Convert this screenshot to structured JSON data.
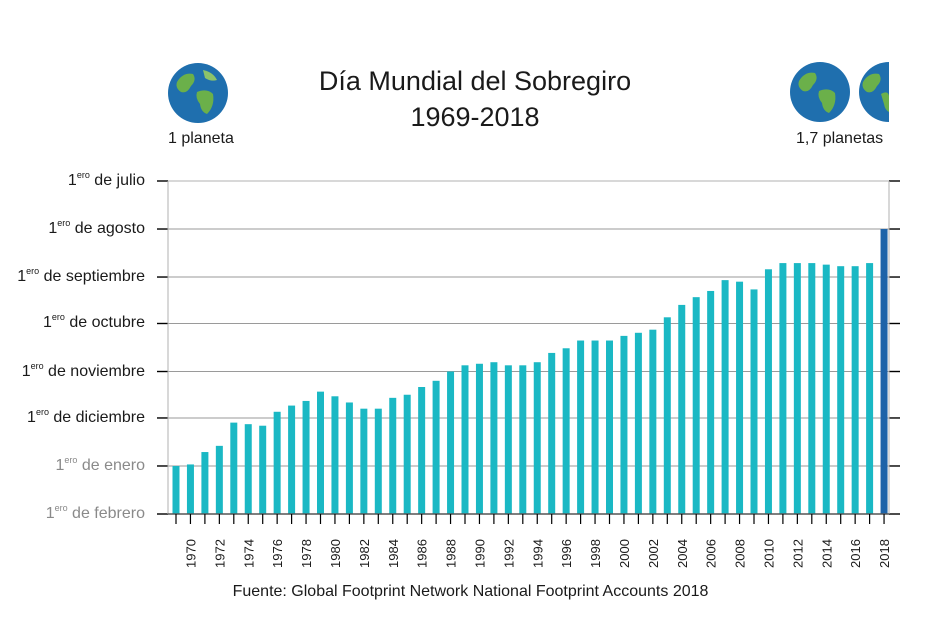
{
  "header": {
    "title_line1": "Día Mundial del Sobregiro",
    "title_line2": "1969-2018",
    "left_globe_label": "1 planeta",
    "right_globe_label": "1,7 planetas"
  },
  "source": "Fuente: Global Footprint Network National Footprint Accounts 2018",
  "colors": {
    "bar": "#1ab8c4",
    "bar_last": "#1e63a8",
    "grid": "#9a9a9a",
    "axis": "#000000"
  },
  "icons": {
    "left": "globe-icon",
    "right": "globe-icon"
  },
  "chart_data": {
    "type": "bar",
    "title": "Día Mundial del Sobregiro 1969-2018",
    "ylabel": "",
    "xlabel": "",
    "y_ticks": [
      {
        "sup": "ero",
        "text": " de julio",
        "value": 182,
        "dim": false
      },
      {
        "sup": "ero",
        "text": " de agosto",
        "value": 213,
        "dim": false
      },
      {
        "sup": "ero",
        "text": " de septiembre",
        "value": 244,
        "dim": false
      },
      {
        "sup": "ero",
        "text": " de octubre",
        "value": 274,
        "dim": false
      },
      {
        "sup": "ero",
        "text": " de noviembre",
        "value": 305,
        "dim": false
      },
      {
        "sup": "ero",
        "text": " de diciembre",
        "value": 335,
        "dim": false
      },
      {
        "sup": "ero",
        "text": " de enero",
        "value": 366,
        "dim": true
      },
      {
        "sup": "ero",
        "text": " de febrero",
        "value": 397,
        "dim": true
      }
    ],
    "ylim_day_of_year": [
      182,
      397
    ],
    "y_axis_reversed": true,
    "grid": true,
    "x_tick_labels": [
      "1970",
      "1972",
      "1974",
      "1976",
      "1978",
      "1980",
      "1982",
      "1984",
      "1986",
      "1988",
      "1990",
      "1992",
      "1994",
      "1996",
      "1998",
      "2000",
      "2002",
      "2004",
      "2006",
      "2008",
      "2010",
      "2012",
      "2014",
      "2016",
      "2018"
    ],
    "categories": [
      1969,
      1970,
      1971,
      1972,
      1973,
      1974,
      1975,
      1976,
      1977,
      1978,
      1979,
      1980,
      1981,
      1982,
      1983,
      1984,
      1985,
      1986,
      1987,
      1988,
      1989,
      1990,
      1991,
      1992,
      1993,
      1994,
      1995,
      1996,
      1997,
      1998,
      1999,
      2000,
      2001,
      2002,
      2003,
      2004,
      2005,
      2006,
      2007,
      2008,
      2009,
      2010,
      2011,
      2012,
      2013,
      2014,
      2015,
      2016,
      2017,
      2018
    ],
    "values_day_of_year": [
      366,
      365,
      357,
      353,
      338,
      339,
      340,
      331,
      327,
      324,
      318,
      321,
      325,
      329,
      329,
      322,
      320,
      315,
      311,
      305,
      301,
      300,
      299,
      301,
      301,
      299,
      293,
      290,
      285,
      285,
      285,
      282,
      280,
      278,
      270,
      262,
      257,
      253,
      246,
      247,
      252,
      239,
      235,
      235,
      235,
      236,
      237,
      237,
      235,
      213
    ]
  }
}
